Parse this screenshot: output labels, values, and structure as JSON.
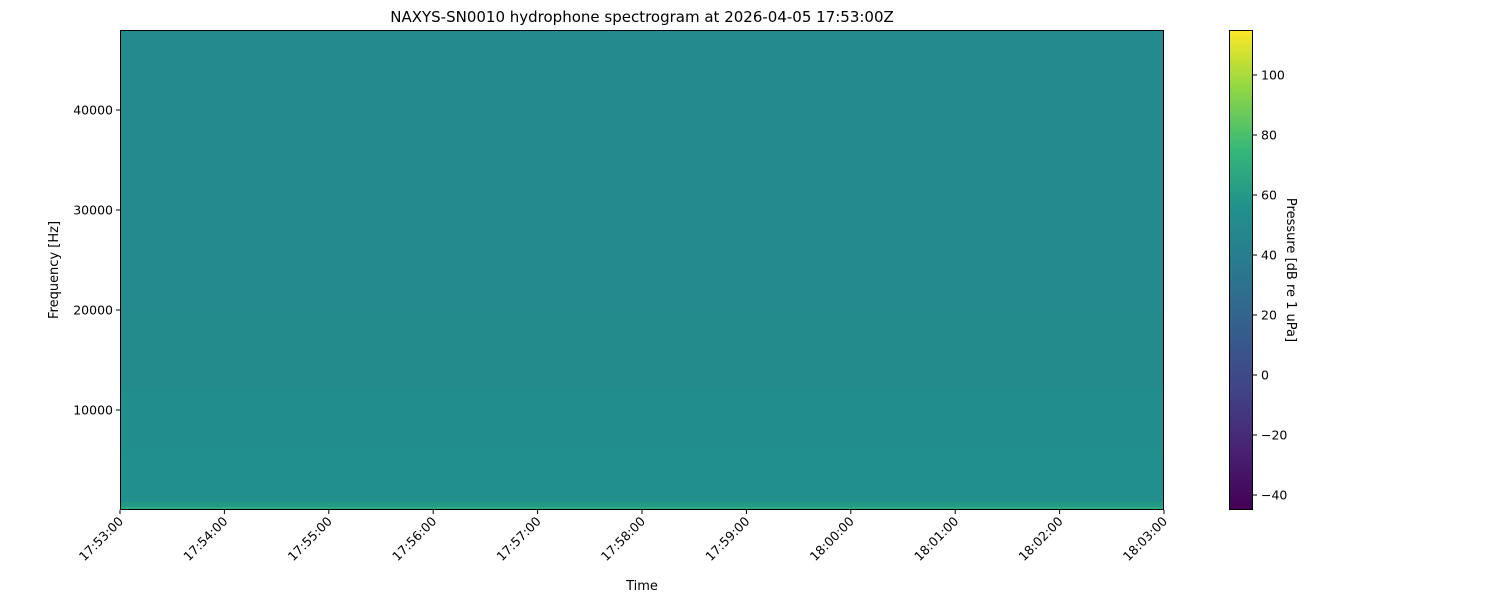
{
  "chart_data": {
    "type": "heatmap",
    "title": "NAXYS-SN0010 hydrophone spectrogram at 2026-04-05 17:53:00Z",
    "xlabel": "Time",
    "ylabel": "Frequency [Hz]",
    "colorbar_label": "Pressure [dB re 1 uPa]",
    "colormap": "viridis",
    "xlim": [
      "17:53:00",
      "18:03:00"
    ],
    "ylim": [
      0,
      48000
    ],
    "clim": [
      -45,
      115
    ],
    "x_ticks": [
      "17:53:00",
      "17:54:00",
      "17:55:00",
      "17:56:00",
      "17:57:00",
      "17:58:00",
      "17:59:00",
      "18:00:00",
      "18:01:00",
      "18:02:00",
      "18:03:00"
    ],
    "y_ticks": [
      10000,
      20000,
      30000,
      40000
    ],
    "colorbar_ticks": [
      -40,
      -20,
      0,
      20,
      40,
      60,
      80,
      100
    ],
    "bands": [
      {
        "f_low": 0,
        "f_high": 300,
        "db": 68
      },
      {
        "f_low": 300,
        "f_high": 800,
        "db": 60
      },
      {
        "f_low": 800,
        "f_high": 6000,
        "db": 55
      },
      {
        "f_low": 6000,
        "f_high": 12000,
        "db": 53
      },
      {
        "f_low": 12000,
        "f_high": 20000,
        "db": 51
      },
      {
        "f_low": 20000,
        "f_high": 48000,
        "db": 50
      }
    ]
  }
}
